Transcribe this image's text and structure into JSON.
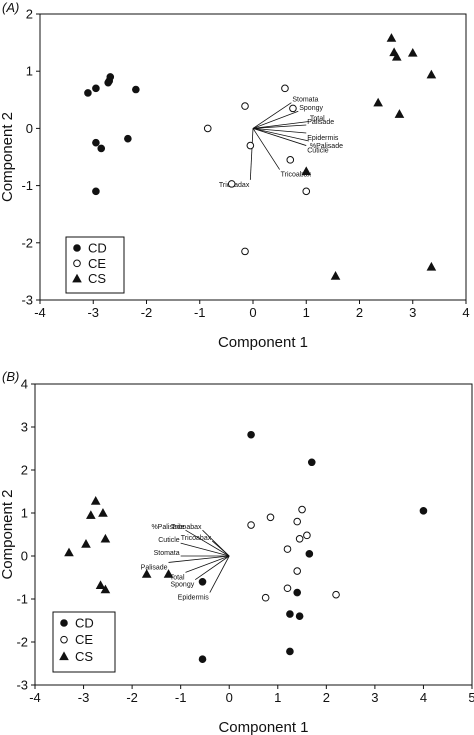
{
  "chart_data": [
    {
      "type": "scatter",
      "panel_label": "(A)",
      "xlabel": "Component 1",
      "ylabel": "Component 2",
      "xlim": [
        -4,
        4
      ],
      "ylim": [
        -3,
        2
      ],
      "xticks": [
        -4,
        -3,
        -2,
        -1,
        0,
        1,
        2,
        3,
        4
      ],
      "yticks": [
        -3,
        -2,
        -1,
        0,
        1,
        2
      ],
      "legend": {
        "position": "bottom-left",
        "entries": [
          "CD",
          "CE",
          "CS"
        ]
      },
      "series": [
        {
          "name": "CD",
          "marker": "filled-circle",
          "points": [
            [
              -3.1,
              0.62
            ],
            [
              -2.95,
              0.7
            ],
            [
              -2.7,
              0.83
            ],
            [
              -2.68,
              0.9
            ],
            [
              -2.72,
              0.8
            ],
            [
              -2.2,
              0.68
            ],
            [
              -2.95,
              -0.25
            ],
            [
              -2.85,
              -0.35
            ],
            [
              -2.35,
              -0.18
            ],
            [
              -2.95,
              -1.1
            ]
          ]
        },
        {
          "name": "CE",
          "marker": "open-circle",
          "points": [
            [
              -0.85,
              0.0
            ],
            [
              -0.15,
              0.39
            ],
            [
              0.6,
              0.7
            ],
            [
              0.75,
              0.35
            ],
            [
              -0.05,
              -0.3
            ],
            [
              0.7,
              -0.55
            ],
            [
              1.0,
              -1.1
            ],
            [
              -0.4,
              -0.97
            ],
            [
              -0.15,
              -2.15
            ]
          ]
        },
        {
          "name": "CS",
          "marker": "filled-triangle",
          "points": [
            [
              2.6,
              1.58
            ],
            [
              2.65,
              1.33
            ],
            [
              2.7,
              1.25
            ],
            [
              3.0,
              1.32
            ],
            [
              2.35,
              0.45
            ],
            [
              2.75,
              0.25
            ],
            [
              3.35,
              0.94
            ],
            [
              1.0,
              -0.75
            ],
            [
              1.55,
              -2.58
            ],
            [
              3.35,
              -2.42
            ]
          ]
        }
      ],
      "loadings": [
        {
          "label": "Stomata",
          "x": 0.72,
          "y": 0.45
        },
        {
          "label": "Spongy",
          "x": 0.85,
          "y": 0.3
        },
        {
          "label": "Total",
          "x": 1.05,
          "y": 0.12
        },
        {
          "label": "Palisade",
          "x": 1.0,
          "y": 0.06
        },
        {
          "label": "Epidermis",
          "x": 1.0,
          "y": -0.08
        },
        {
          "label": "%Palisade",
          "x": 1.05,
          "y": -0.22
        },
        {
          "label": "Cuticle",
          "x": 1.0,
          "y": -0.3
        },
        {
          "label": "Tricoabax",
          "x": 0.5,
          "y": -0.72
        },
        {
          "label": "Tricoadax",
          "x": -0.05,
          "y": -0.9
        }
      ]
    },
    {
      "type": "scatter",
      "panel_label": "(B)",
      "xlabel": "Component 1",
      "ylabel": "Component 2",
      "xlim": [
        -4,
        5
      ],
      "ylim": [
        -3,
        4
      ],
      "xticks": [
        -4,
        -3,
        -2,
        -1,
        0,
        1,
        2,
        3,
        4,
        5
      ],
      "yticks": [
        -3,
        -2,
        -1,
        0,
        1,
        2,
        3,
        4
      ],
      "legend": {
        "position": "bottom-left",
        "entries": [
          "CD",
          "CE",
          "CS"
        ]
      },
      "series": [
        {
          "name": "CD",
          "marker": "filled-circle",
          "points": [
            [
              0.45,
              2.82
            ],
            [
              1.7,
              2.18
            ],
            [
              4.0,
              1.05
            ],
            [
              1.65,
              0.05
            ],
            [
              -0.55,
              -0.6
            ],
            [
              1.25,
              -1.35
            ],
            [
              1.4,
              -0.85
            ],
            [
              1.45,
              -1.4
            ],
            [
              1.25,
              -2.22
            ],
            [
              -0.55,
              -2.4
            ]
          ]
        },
        {
          "name": "CE",
          "marker": "open-circle",
          "points": [
            [
              0.45,
              0.72
            ],
            [
              0.85,
              0.9
            ],
            [
              1.5,
              1.08
            ],
            [
              1.4,
              0.8
            ],
            [
              1.45,
              0.4
            ],
            [
              1.6,
              0.48
            ],
            [
              1.2,
              0.16
            ],
            [
              1.4,
              -0.35
            ],
            [
              1.2,
              -0.75
            ],
            [
              0.75,
              -0.97
            ],
            [
              2.2,
              -0.9
            ]
          ]
        },
        {
          "name": "CS",
          "marker": "filled-triangle",
          "points": [
            [
              -2.75,
              1.28
            ],
            [
              -2.6,
              1.0
            ],
            [
              -2.85,
              0.95
            ],
            [
              -2.55,
              0.4
            ],
            [
              -2.95,
              0.28
            ],
            [
              -3.3,
              0.08
            ],
            [
              -2.65,
              -0.68
            ],
            [
              -2.55,
              -0.78
            ],
            [
              -1.7,
              -0.42
            ],
            [
              -1.25,
              -0.42
            ]
          ]
        }
      ],
      "loadings": [
        {
          "label": "%Palisade",
          "x": -0.9,
          "y": 0.6
        },
        {
          "label": "Tricoabax",
          "x": -0.55,
          "y": 0.6
        },
        {
          "label": "Tricoabax",
          "x": -0.35,
          "y": 0.35
        },
        {
          "label": "Cuticle",
          "x": -1.0,
          "y": 0.3
        },
        {
          "label": "Stomata",
          "x": -1.0,
          "y": 0.0
        },
        {
          "label": "Palisade",
          "x": -1.25,
          "y": -0.15
        },
        {
          "label": "Total",
          "x": -0.9,
          "y": -0.38
        },
        {
          "label": "Spongy",
          "x": -0.7,
          "y": -0.55
        },
        {
          "label": "Epidermis",
          "x": -0.4,
          "y": -0.85
        }
      ]
    }
  ]
}
